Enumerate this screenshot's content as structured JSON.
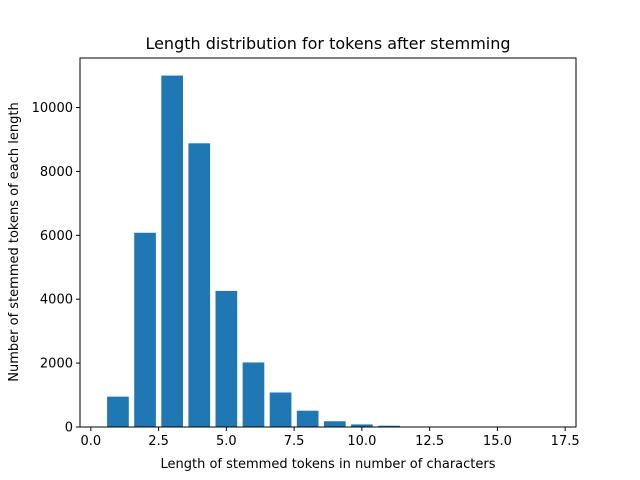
{
  "chart_data": {
    "type": "bar",
    "title": "Length distribution for tokens after stemming",
    "xlabel": "Length of stemmed tokens in number of characters",
    "ylabel": "Number of stemmed tokens of each length",
    "x": [
      1,
      2,
      3,
      4,
      5,
      6,
      7,
      8,
      9,
      10,
      11,
      12,
      13,
      14,
      15,
      16,
      17
    ],
    "values": [
      950,
      6080,
      11000,
      8880,
      4260,
      2020,
      1080,
      510,
      180,
      80,
      40,
      15,
      8,
      5,
      3,
      2,
      1
    ],
    "xlim": [
      -0.4,
      17.9
    ],
    "ylim": [
      0,
      11550
    ],
    "xticks": [
      0.0,
      2.5,
      5.0,
      7.5,
      10.0,
      12.5,
      15.0,
      17.5
    ],
    "xtick_labels": [
      "0.0",
      "2.5",
      "5.0",
      "7.5",
      "10.0",
      "12.5",
      "15.0",
      "17.5"
    ],
    "yticks": [
      0,
      2000,
      4000,
      6000,
      8000,
      10000
    ],
    "ytick_labels": [
      "0",
      "2000",
      "4000",
      "6000",
      "8000",
      "10000"
    ],
    "bar_color": "#1f77b4",
    "grid": false,
    "legend": "none"
  }
}
